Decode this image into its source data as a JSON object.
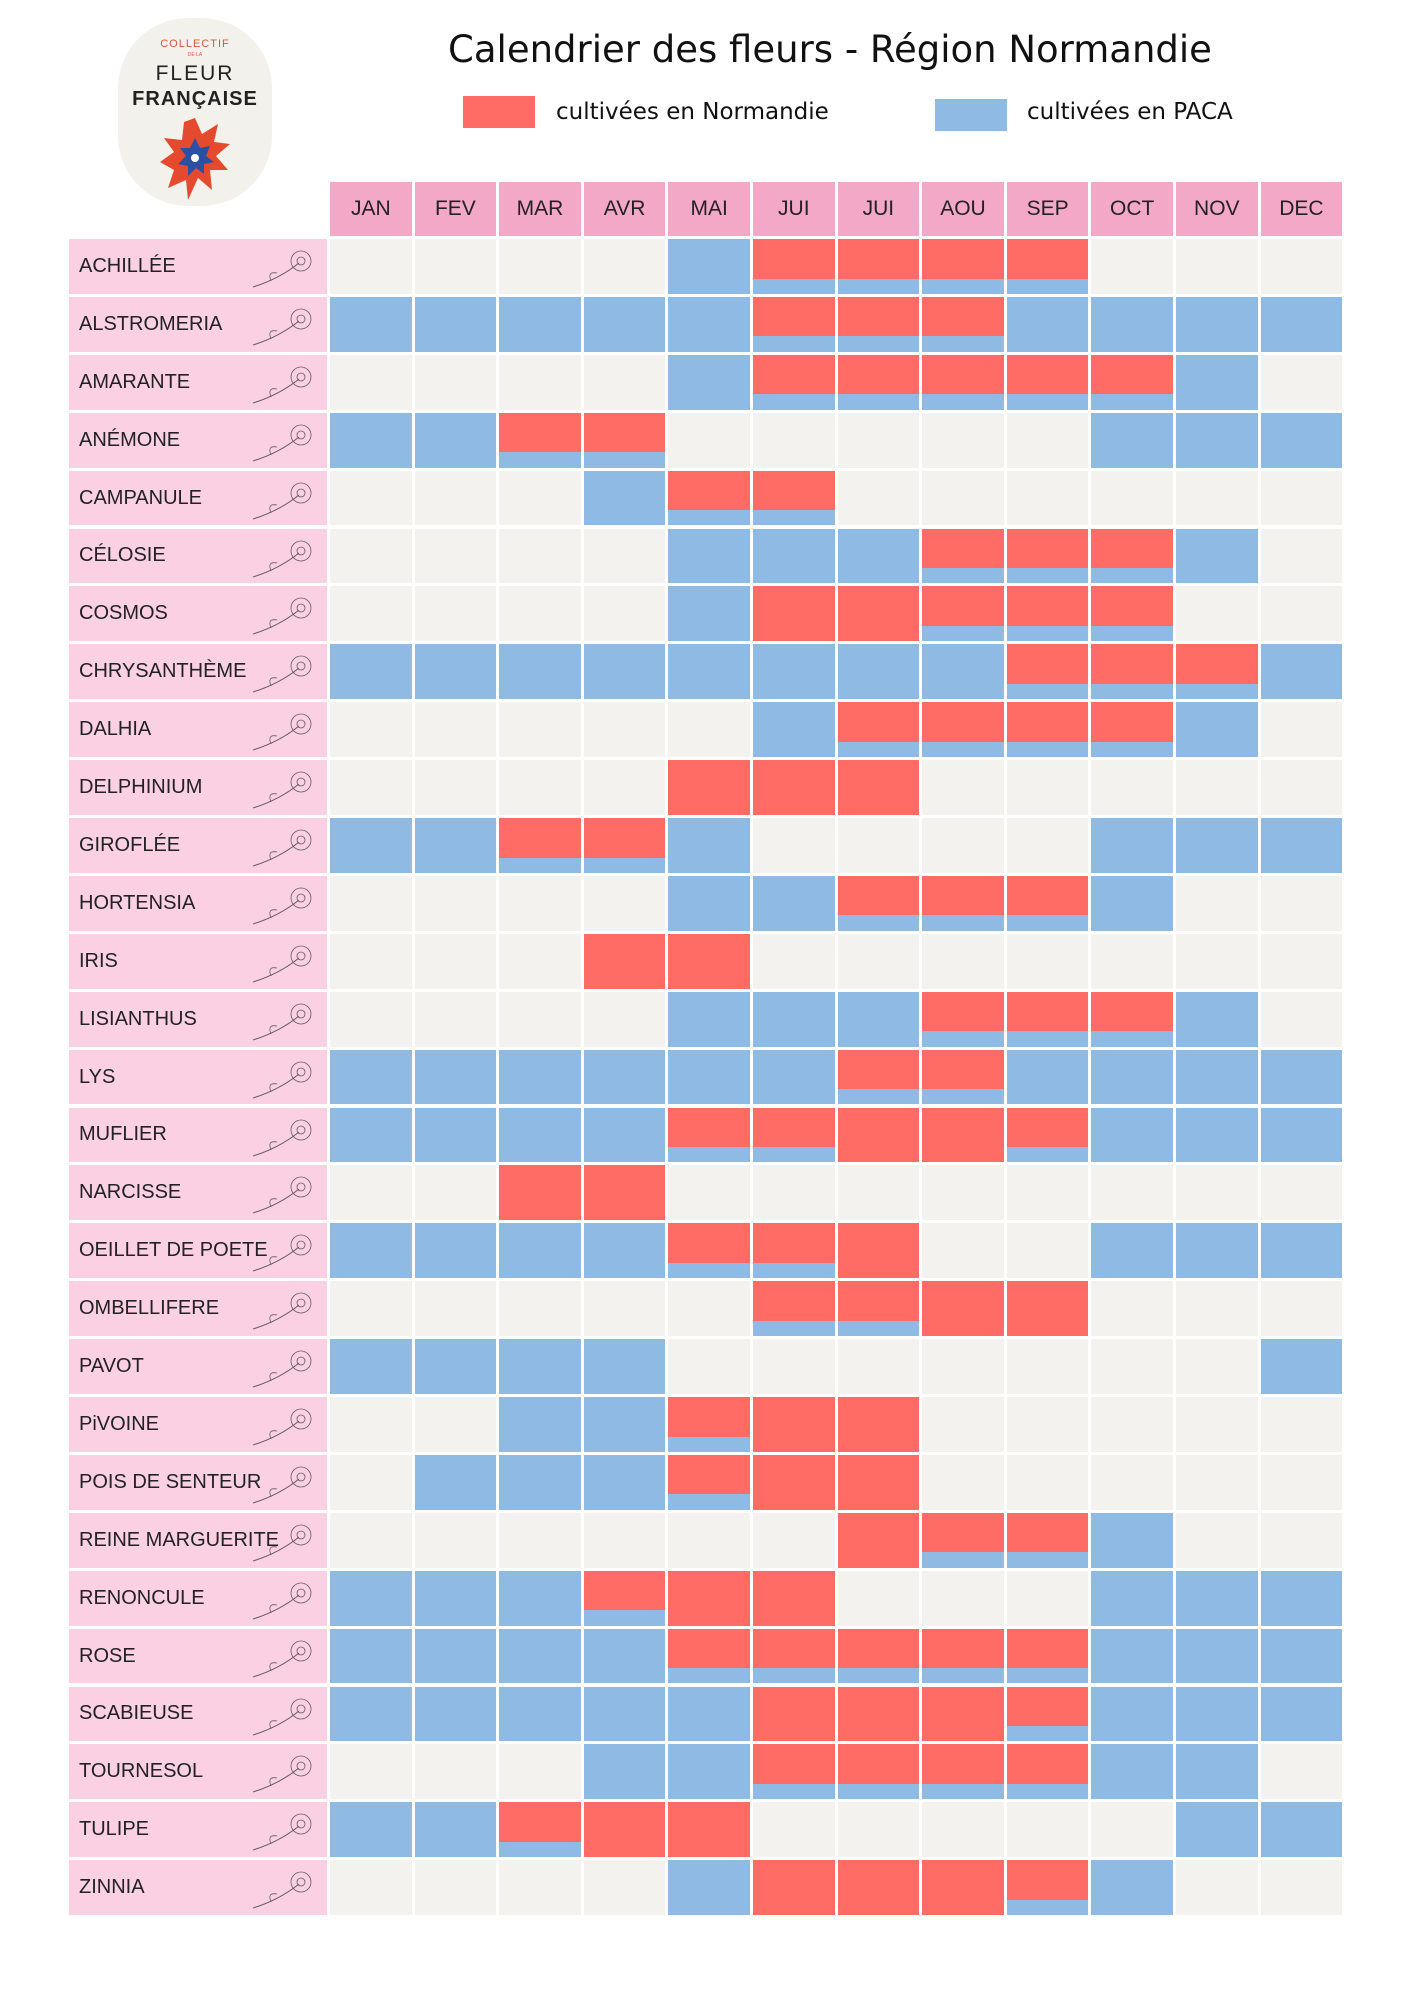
{
  "logo": {
    "line1": "COLLECTIF",
    "line2": "DE LA",
    "line3": "FLEUR",
    "line4": "FRANÇAISE"
  },
  "chart_data": {
    "type": "heatmap",
    "title": "Calendrier des fleurs - Région Normandie",
    "legend": [
      {
        "key": "N",
        "label": "cultivées en Normandie",
        "color": "#FF6B65"
      },
      {
        "key": "P",
        "label": "cultivées en PACA",
        "color": "#8FBAE4"
      }
    ],
    "empty_color": "#F3F2EF",
    "legend_placement": "top",
    "categories": [
      "JAN",
      "FEV",
      "MAR",
      "AVR",
      "MAI",
      "JUI",
      "JUI",
      "AOU",
      "SEP",
      "OCT",
      "NOV",
      "DEC"
    ],
    "value_codes": {
      "": "none",
      "N": "Normandie",
      "P": "PACA",
      "B": "Normandie + PACA"
    },
    "rows": [
      {
        "name": "ACHILLÉE",
        "values": [
          "",
          "",
          "",
          "",
          "P",
          "B",
          "B",
          "B",
          "B",
          "",
          "",
          ""
        ]
      },
      {
        "name": "ALSTROMERIA",
        "values": [
          "P",
          "P",
          "P",
          "P",
          "P",
          "B",
          "B",
          "B",
          "P",
          "P",
          "P",
          "P"
        ]
      },
      {
        "name": "AMARANTE",
        "values": [
          "",
          "",
          "",
          "",
          "P",
          "B",
          "B",
          "B",
          "B",
          "B",
          "P",
          ""
        ]
      },
      {
        "name": "ANÉMONE",
        "values": [
          "P",
          "P",
          "B",
          "B",
          "",
          "",
          "",
          "",
          "",
          "P",
          "P",
          "P"
        ]
      },
      {
        "name": "CAMPANULE",
        "values": [
          "",
          "",
          "",
          "P",
          "B",
          "B",
          "",
          "",
          "",
          "",
          "",
          ""
        ]
      },
      {
        "name": "CÉLOSIE",
        "values": [
          "",
          "",
          "",
          "",
          "P",
          "P",
          "P",
          "B",
          "B",
          "B",
          "P",
          ""
        ]
      },
      {
        "name": "COSMOS",
        "values": [
          "",
          "",
          "",
          "",
          "P",
          "N",
          "N",
          "B",
          "B",
          "B",
          "",
          ""
        ]
      },
      {
        "name": "CHRYSANTHÈME",
        "values": [
          "P",
          "P",
          "P",
          "P",
          "P",
          "P",
          "P",
          "P",
          "B",
          "B",
          "B",
          "P"
        ]
      },
      {
        "name": "DALHIA",
        "values": [
          "",
          "",
          "",
          "",
          "",
          "P",
          "B",
          "B",
          "B",
          "B",
          "P",
          ""
        ]
      },
      {
        "name": "DELPHINIUM",
        "values": [
          "",
          "",
          "",
          "",
          "N",
          "N",
          "N",
          "",
          "",
          "",
          "",
          ""
        ]
      },
      {
        "name": "GIROFLÉE",
        "values": [
          "P",
          "P",
          "B",
          "B",
          "P",
          "",
          "",
          "",
          "",
          "P",
          "P",
          "P"
        ]
      },
      {
        "name": "HORTENSIA",
        "values": [
          "",
          "",
          "",
          "",
          "P",
          "P",
          "B",
          "B",
          "B",
          "P",
          "",
          ""
        ]
      },
      {
        "name": "IRIS",
        "values": [
          "",
          "",
          "",
          "N",
          "N",
          "",
          "",
          "",
          "",
          "",
          "",
          ""
        ]
      },
      {
        "name": "LISIANTHUS",
        "values": [
          "",
          "",
          "",
          "",
          "P",
          "P",
          "P",
          "B",
          "B",
          "B",
          "P",
          ""
        ]
      },
      {
        "name": "LYS",
        "values": [
          "P",
          "P",
          "P",
          "P",
          "P",
          "P",
          "B",
          "B",
          "P",
          "P",
          "P",
          "P"
        ]
      },
      {
        "name": "MUFLIER",
        "values": [
          "P",
          "P",
          "P",
          "P",
          "B",
          "B",
          "N",
          "N",
          "B",
          "P",
          "P",
          "P"
        ]
      },
      {
        "name": "NARCISSE",
        "values": [
          "",
          "",
          "N",
          "N",
          "",
          "",
          "",
          "",
          "",
          "",
          "",
          ""
        ]
      },
      {
        "name": "OEILLET DE POETE",
        "values": [
          "P",
          "P",
          "P",
          "P",
          "B",
          "B",
          "N",
          "",
          "",
          "P",
          "P",
          "P"
        ]
      },
      {
        "name": "OMBELLIFERE",
        "values": [
          "",
          "",
          "",
          "",
          "",
          "B",
          "B",
          "N",
          "N",
          "",
          "",
          ""
        ]
      },
      {
        "name": "PAVOT",
        "values": [
          "P",
          "P",
          "P",
          "P",
          "",
          "",
          "",
          "",
          "",
          "",
          "",
          "P"
        ]
      },
      {
        "name": "PiVOINE",
        "values": [
          "",
          "",
          "P",
          "P",
          "B",
          "N",
          "N",
          "",
          "",
          "",
          "",
          ""
        ]
      },
      {
        "name": "POIS DE SENTEUR",
        "values": [
          "",
          "P",
          "P",
          "P",
          "B",
          "N",
          "N",
          "",
          "",
          "",
          "",
          ""
        ]
      },
      {
        "name": "REINE MARGUERITE",
        "values": [
          "",
          "",
          "",
          "",
          "",
          "",
          "N",
          "B",
          "B",
          "P",
          "",
          ""
        ]
      },
      {
        "name": "RENONCULE",
        "values": [
          "P",
          "P",
          "P",
          "B",
          "N",
          "N",
          "",
          "",
          "",
          "P",
          "P",
          "P"
        ]
      },
      {
        "name": "ROSE",
        "values": [
          "P",
          "P",
          "P",
          "P",
          "B",
          "B",
          "B",
          "B",
          "B",
          "P",
          "P",
          "P"
        ]
      },
      {
        "name": "SCABIEUSE",
        "values": [
          "P",
          "P",
          "P",
          "P",
          "P",
          "N",
          "N",
          "N",
          "B",
          "P",
          "P",
          "P"
        ]
      },
      {
        "name": "TOURNESOL",
        "values": [
          "",
          "",
          "",
          "P",
          "P",
          "B",
          "B",
          "B",
          "B",
          "P",
          "P",
          ""
        ]
      },
      {
        "name": "TULIPE",
        "values": [
          "P",
          "P",
          "B",
          "N",
          "N",
          "",
          "",
          "",
          "",
          "",
          "P",
          "P"
        ]
      },
      {
        "name": "ZINNIA",
        "values": [
          "",
          "",
          "",
          "",
          "P",
          "N",
          "N",
          "N",
          "B",
          "P",
          "",
          ""
        ]
      }
    ]
  }
}
